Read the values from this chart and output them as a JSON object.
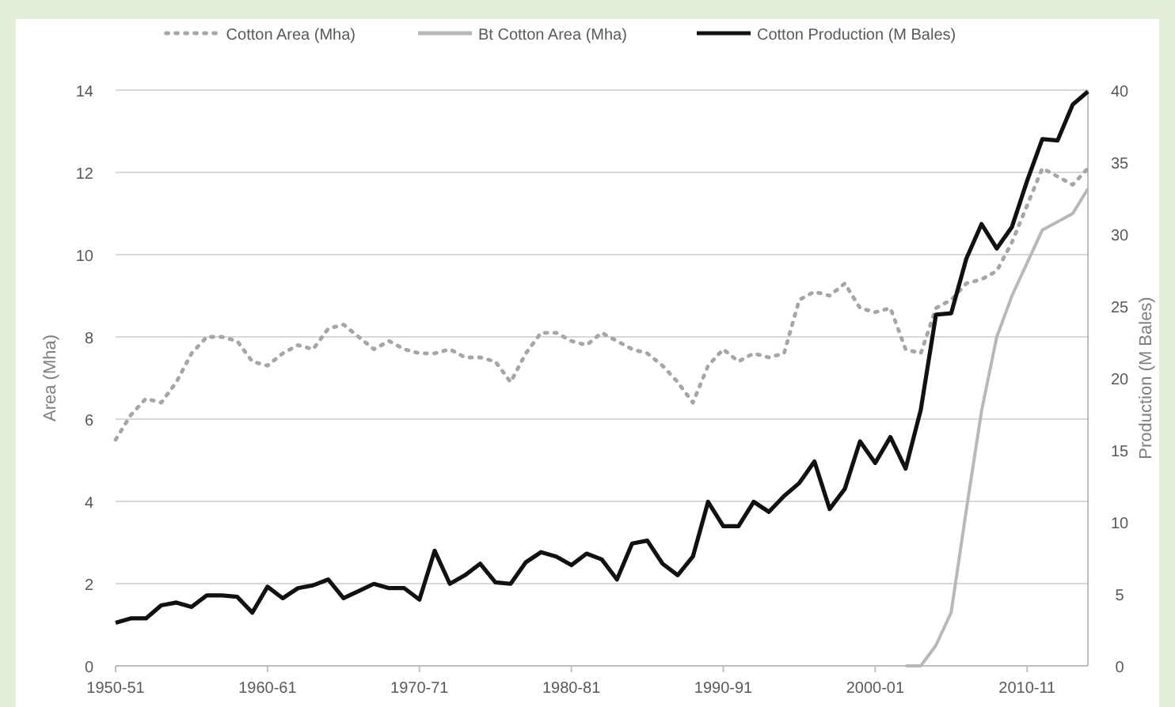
{
  "chart_data": {
    "type": "line",
    "xlabel": null,
    "ylabel": "Area (Mha)",
    "y2label": "Production (M Bales)",
    "categories": [
      "1950-51",
      null,
      null,
      null,
      null,
      null,
      null,
      null,
      null,
      null,
      "1960-61",
      null,
      null,
      null,
      null,
      null,
      null,
      null,
      null,
      null,
      "1970-71",
      null,
      null,
      null,
      null,
      null,
      null,
      null,
      null,
      null,
      "1980-81",
      null,
      null,
      null,
      null,
      null,
      null,
      null,
      null,
      null,
      "1990-91",
      null,
      null,
      null,
      null,
      null,
      null,
      null,
      null,
      null,
      "2000-01",
      null,
      null,
      null,
      null,
      null,
      null,
      null,
      null,
      null,
      "2010-11",
      null,
      null,
      null,
      null
    ],
    "ylim": [
      0,
      14
    ],
    "yticks": [
      0,
      2,
      4,
      6,
      8,
      10,
      12,
      14
    ],
    "y2lim": [
      0,
      40
    ],
    "y2ticks": [
      0,
      5,
      10,
      15,
      20,
      25,
      30,
      35,
      40
    ],
    "grid": "y",
    "legend": "top",
    "series": [
      {
        "name": "Cotton Area (Mha)",
        "color": "#a6a6a6",
        "line_style": "dotted",
        "values": [
          5.5,
          6.1,
          6.5,
          6.4,
          6.9,
          7.6,
          8.0,
          8.0,
          7.9,
          7.4,
          7.3,
          7.6,
          7.8,
          7.7,
          8.2,
          8.3,
          8.0,
          7.7,
          7.9,
          7.7,
          7.6,
          7.6,
          7.7,
          7.5,
          7.5,
          7.4,
          6.9,
          7.6,
          8.1,
          8.1,
          7.9,
          7.8,
          8.1,
          7.9,
          7.7,
          7.6,
          7.3,
          6.9,
          6.4,
          7.3,
          7.7,
          7.4,
          7.6,
          7.5,
          7.6,
          8.9,
          9.1,
          9.0,
          9.3,
          8.7,
          8.6,
          8.7,
          7.7,
          7.6,
          8.7,
          8.9,
          9.3,
          9.4,
          9.6,
          10.3,
          11.2,
          12.1,
          11.9,
          11.7,
          12.1
        ]
      },
      {
        "name": "Bt Cotton Area (Mha)",
        "color": "#b8b8b8",
        "line_style": "solid",
        "values": [
          null,
          null,
          null,
          null,
          null,
          null,
          null,
          null,
          null,
          null,
          null,
          null,
          null,
          null,
          null,
          null,
          null,
          null,
          null,
          null,
          null,
          null,
          null,
          null,
          null,
          null,
          null,
          null,
          null,
          null,
          null,
          null,
          null,
          null,
          null,
          null,
          null,
          null,
          null,
          null,
          null,
          null,
          null,
          null,
          null,
          null,
          null,
          null,
          null,
          null,
          null,
          null,
          0,
          0,
          0.5,
          1.3,
          3.8,
          6.2,
          8.0,
          9.0,
          9.8,
          10.6,
          10.8,
          11.0,
          11.6
        ]
      },
      {
        "name": "Cotton Production (M Bales)",
        "color": "#111111",
        "line_style": "solid",
        "axis": "y2",
        "values": [
          3.0,
          3.3,
          3.3,
          4.2,
          4.4,
          4.1,
          4.9,
          4.9,
          4.8,
          3.7,
          5.5,
          4.7,
          5.4,
          5.6,
          6.0,
          4.7,
          5.2,
          5.7,
          5.4,
          5.4,
          4.6,
          8.0,
          5.7,
          6.3,
          7.1,
          5.8,
          5.7,
          7.2,
          7.9,
          7.6,
          7.0,
          7.8,
          7.4,
          6.0,
          8.5,
          8.7,
          7.1,
          6.3,
          7.6,
          11.4,
          9.7,
          9.7,
          11.4,
          10.7,
          11.8,
          12.7,
          14.2,
          10.9,
          12.3,
          15.6,
          14.1,
          15.9,
          13.7,
          17.8,
          24.4,
          24.5,
          28.3,
          30.7,
          29.0,
          30.5,
          33.7,
          36.6,
          36.5,
          39.0,
          39.9
        ]
      }
    ]
  }
}
